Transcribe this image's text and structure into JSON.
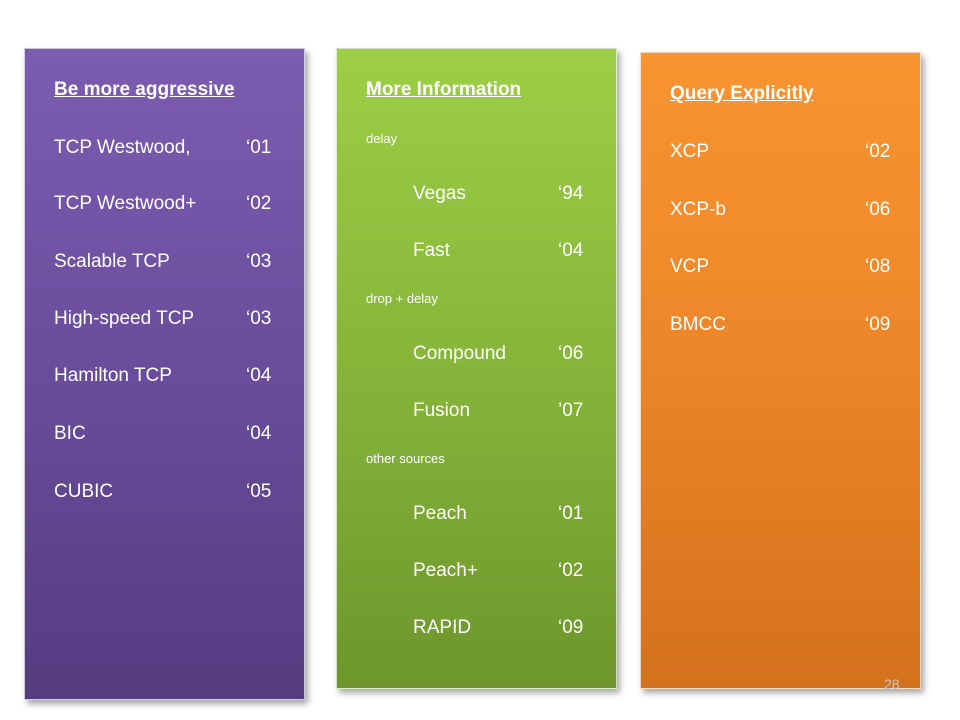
{
  "columns": [
    {
      "heading": "Be more aggressive",
      "items": [
        {
          "name": "TCP Westwood,",
          "year": "‘01"
        },
        {
          "name": "TCP Westwood+",
          "year": "‘02"
        },
        {
          "name": "Scalable TCP",
          "year": "‘03"
        },
        {
          "name": "High-speed TCP",
          "year": "‘03"
        },
        {
          "name": "Hamilton TCP",
          "year": "‘04"
        },
        {
          "name": "BIC",
          "year": "‘04"
        },
        {
          "name": "CUBIC",
          "year": "‘05"
        }
      ]
    },
    {
      "heading": "More Information",
      "groups": [
        {
          "label": "delay",
          "items": [
            {
              "name": "Vegas",
              "year": "‘94"
            },
            {
              "name": "Fast",
              "year": "‘04"
            }
          ]
        },
        {
          "label": "drop + delay",
          "items": [
            {
              "name": "Compound",
              "year": "‘06"
            },
            {
              "name": "Fusion",
              "year": "’07"
            }
          ]
        },
        {
          "label": "other sources",
          "items": [
            {
              "name": "Peach",
              "year": "‘01"
            },
            {
              "name": "Peach+",
              "year": "‘02"
            },
            {
              "name": "RAPID",
              "year": "‘09"
            }
          ]
        }
      ]
    },
    {
      "heading": "Query Explicitly",
      "items": [
        {
          "name": "XCP",
          "year": "‘02"
        },
        {
          "name": "XCP-b",
          "year": "‘06"
        },
        {
          "name": "VCP",
          "year": "‘08"
        },
        {
          "name": "BMCC",
          "year": "‘09"
        }
      ]
    }
  ],
  "page_number": "28",
  "colors": {
    "purple_panel": "#6a4c9c",
    "green_panel": "#86b53a",
    "orange_panel": "#ec8528",
    "text": "#ffffff"
  }
}
